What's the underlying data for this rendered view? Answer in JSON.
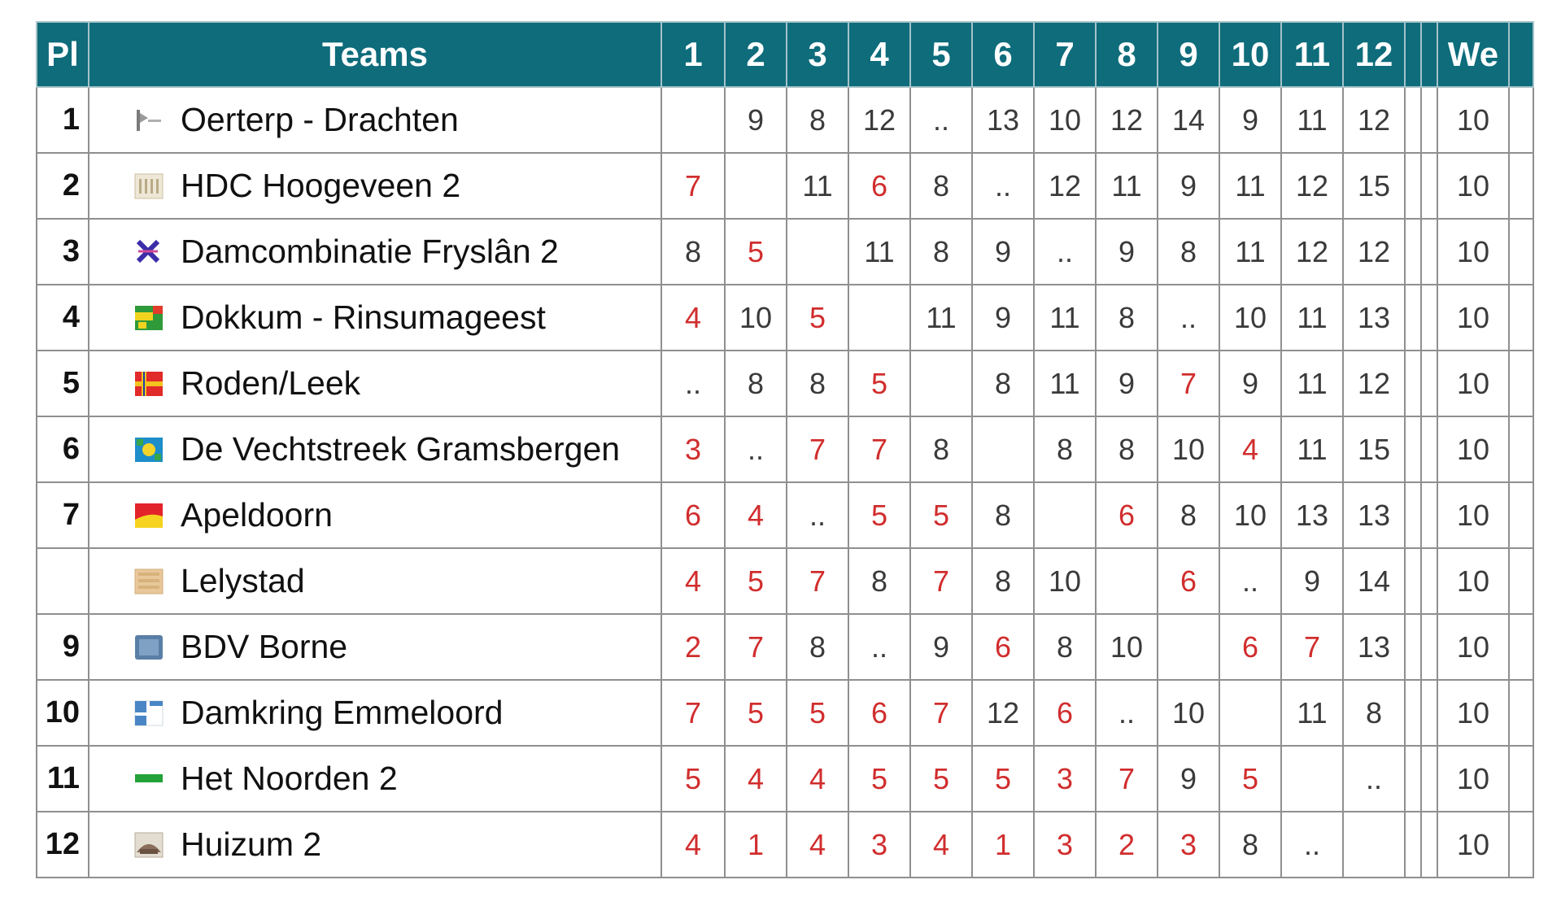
{
  "header": {
    "pl": "Pl",
    "teams": "Teams",
    "rounds": [
      "1",
      "2",
      "3",
      "4",
      "5",
      "6",
      "7",
      "8",
      "9",
      "10",
      "11",
      "12"
    ],
    "extra1": "",
    "extra2": "",
    "we": "We",
    "last": ""
  },
  "rows": [
    {
      "pl": "1",
      "team": "Oerterp - Drachten",
      "logo_icon": "oerterp-drachten-logo-icon",
      "scores": [
        {
          "v": "",
          "loss": false
        },
        {
          "v": "9",
          "loss": false
        },
        {
          "v": "8",
          "loss": false
        },
        {
          "v": "12",
          "loss": false
        },
        {
          "v": "..",
          "loss": false
        },
        {
          "v": "13",
          "loss": false
        },
        {
          "v": "10",
          "loss": false
        },
        {
          "v": "12",
          "loss": false
        },
        {
          "v": "14",
          "loss": false
        },
        {
          "v": "9",
          "loss": false
        },
        {
          "v": "11",
          "loss": false
        },
        {
          "v": "12",
          "loss": false
        }
      ],
      "we": "10"
    },
    {
      "pl": "2",
      "team": "HDC Hoogeveen 2",
      "logo_icon": "hdc-hoogeveen-logo-icon",
      "scores": [
        {
          "v": "7",
          "loss": true
        },
        {
          "v": "",
          "loss": false
        },
        {
          "v": "11",
          "loss": false
        },
        {
          "v": "6",
          "loss": true
        },
        {
          "v": "8",
          "loss": false
        },
        {
          "v": "..",
          "loss": false
        },
        {
          "v": "12",
          "loss": false
        },
        {
          "v": "11",
          "loss": false
        },
        {
          "v": "9",
          "loss": false
        },
        {
          "v": "11",
          "loss": false
        },
        {
          "v": "12",
          "loss": false
        },
        {
          "v": "15",
          "loss": false
        }
      ],
      "we": "10"
    },
    {
      "pl": "3",
      "team": "Damcombinatie Fryslân 2",
      "logo_icon": "damcombinatie-fryslan-logo-icon",
      "scores": [
        {
          "v": "8",
          "loss": false
        },
        {
          "v": "5",
          "loss": true
        },
        {
          "v": "",
          "loss": false
        },
        {
          "v": "11",
          "loss": false
        },
        {
          "v": "8",
          "loss": false
        },
        {
          "v": "9",
          "loss": false
        },
        {
          "v": "..",
          "loss": false
        },
        {
          "v": "9",
          "loss": false
        },
        {
          "v": "8",
          "loss": false
        },
        {
          "v": "11",
          "loss": false
        },
        {
          "v": "12",
          "loss": false
        },
        {
          "v": "12",
          "loss": false
        }
      ],
      "we": "10"
    },
    {
      "pl": "4",
      "team": "Dokkum - Rinsumageest",
      "logo_icon": "dokkum-rinsumageest-logo-icon",
      "scores": [
        {
          "v": "4",
          "loss": true
        },
        {
          "v": "10",
          "loss": false
        },
        {
          "v": "5",
          "loss": true
        },
        {
          "v": "",
          "loss": false
        },
        {
          "v": "11",
          "loss": false
        },
        {
          "v": "9",
          "loss": false
        },
        {
          "v": "11",
          "loss": false
        },
        {
          "v": "8",
          "loss": false
        },
        {
          "v": "..",
          "loss": false
        },
        {
          "v": "10",
          "loss": false
        },
        {
          "v": "11",
          "loss": false
        },
        {
          "v": "13",
          "loss": false
        }
      ],
      "we": "10"
    },
    {
      "pl": "5",
      "team": "Roden/Leek",
      "logo_icon": "roden-leek-logo-icon",
      "scores": [
        {
          "v": "..",
          "loss": false
        },
        {
          "v": "8",
          "loss": false
        },
        {
          "v": "8",
          "loss": false
        },
        {
          "v": "5",
          "loss": true
        },
        {
          "v": "",
          "loss": false
        },
        {
          "v": "8",
          "loss": false
        },
        {
          "v": "11",
          "loss": false
        },
        {
          "v": "9",
          "loss": false
        },
        {
          "v": "7",
          "loss": true
        },
        {
          "v": "9",
          "loss": false
        },
        {
          "v": "11",
          "loss": false
        },
        {
          "v": "12",
          "loss": false
        }
      ],
      "we": "10"
    },
    {
      "pl": "6",
      "team": "De Vechtstreek Gramsbergen",
      "logo_icon": "de-vechtstreek-gramsbergen-logo-icon",
      "scores": [
        {
          "v": "3",
          "loss": true
        },
        {
          "v": "..",
          "loss": false
        },
        {
          "v": "7",
          "loss": true
        },
        {
          "v": "7",
          "loss": true
        },
        {
          "v": "8",
          "loss": false
        },
        {
          "v": "",
          "loss": false
        },
        {
          "v": "8",
          "loss": false
        },
        {
          "v": "8",
          "loss": false
        },
        {
          "v": "10",
          "loss": false
        },
        {
          "v": "4",
          "loss": true
        },
        {
          "v": "11",
          "loss": false
        },
        {
          "v": "15",
          "loss": false
        }
      ],
      "we": "10"
    },
    {
      "pl": "7",
      "team": "Apeldoorn",
      "logo_icon": "apeldoorn-logo-icon",
      "scores": [
        {
          "v": "6",
          "loss": true
        },
        {
          "v": "4",
          "loss": true
        },
        {
          "v": "..",
          "loss": false
        },
        {
          "v": "5",
          "loss": true
        },
        {
          "v": "5",
          "loss": true
        },
        {
          "v": "8",
          "loss": false
        },
        {
          "v": "",
          "loss": false
        },
        {
          "v": "6",
          "loss": true
        },
        {
          "v": "8",
          "loss": false
        },
        {
          "v": "10",
          "loss": false
        },
        {
          "v": "13",
          "loss": false
        },
        {
          "v": "13",
          "loss": false
        }
      ],
      "we": "10"
    },
    {
      "pl": "",
      "team": "Lelystad",
      "logo_icon": "lelystad-logo-icon",
      "scores": [
        {
          "v": "4",
          "loss": true
        },
        {
          "v": "5",
          "loss": true
        },
        {
          "v": "7",
          "loss": true
        },
        {
          "v": "8",
          "loss": false
        },
        {
          "v": "7",
          "loss": true
        },
        {
          "v": "8",
          "loss": false
        },
        {
          "v": "10",
          "loss": false
        },
        {
          "v": "",
          "loss": false
        },
        {
          "v": "6",
          "loss": true
        },
        {
          "v": "..",
          "loss": false
        },
        {
          "v": "9",
          "loss": false
        },
        {
          "v": "14",
          "loss": false
        }
      ],
      "we": "10"
    },
    {
      "pl": "9",
      "team": "BDV Borne",
      "logo_icon": "bdv-borne-logo-icon",
      "scores": [
        {
          "v": "2",
          "loss": true
        },
        {
          "v": "7",
          "loss": true
        },
        {
          "v": "8",
          "loss": false
        },
        {
          "v": "..",
          "loss": false
        },
        {
          "v": "9",
          "loss": false
        },
        {
          "v": "6",
          "loss": true
        },
        {
          "v": "8",
          "loss": false
        },
        {
          "v": "10",
          "loss": false
        },
        {
          "v": "",
          "loss": false
        },
        {
          "v": "6",
          "loss": true
        },
        {
          "v": "7",
          "loss": true
        },
        {
          "v": "13",
          "loss": false
        }
      ],
      "we": "10"
    },
    {
      "pl": "10",
      "team": "Damkring Emmeloord",
      "logo_icon": "damkring-emmeloord-logo-icon",
      "scores": [
        {
          "v": "7",
          "loss": true
        },
        {
          "v": "5",
          "loss": true
        },
        {
          "v": "5",
          "loss": true
        },
        {
          "v": "6",
          "loss": true
        },
        {
          "v": "7",
          "loss": true
        },
        {
          "v": "12",
          "loss": false
        },
        {
          "v": "6",
          "loss": true
        },
        {
          "v": "..",
          "loss": false
        },
        {
          "v": "10",
          "loss": false
        },
        {
          "v": "",
          "loss": false
        },
        {
          "v": "11",
          "loss": false
        },
        {
          "v": "8",
          "loss": false
        }
      ],
      "we": "10"
    },
    {
      "pl": "11",
      "team": "Het Noorden 2",
      "logo_icon": "het-noorden-logo-icon",
      "scores": [
        {
          "v": "5",
          "loss": true
        },
        {
          "v": "4",
          "loss": true
        },
        {
          "v": "4",
          "loss": true
        },
        {
          "v": "5",
          "loss": true
        },
        {
          "v": "5",
          "loss": true
        },
        {
          "v": "5",
          "loss": true
        },
        {
          "v": "3",
          "loss": true
        },
        {
          "v": "7",
          "loss": true
        },
        {
          "v": "9",
          "loss": false
        },
        {
          "v": "5",
          "loss": true
        },
        {
          "v": "",
          "loss": false
        },
        {
          "v": "..",
          "loss": false
        }
      ],
      "we": "10"
    },
    {
      "pl": "12",
      "team": "Huizum 2",
      "logo_icon": "huizum-logo-icon",
      "scores": [
        {
          "v": "4",
          "loss": true
        },
        {
          "v": "1",
          "loss": true
        },
        {
          "v": "4",
          "loss": true
        },
        {
          "v": "3",
          "loss": true
        },
        {
          "v": "4",
          "loss": true
        },
        {
          "v": "1",
          "loss": true
        },
        {
          "v": "3",
          "loss": true
        },
        {
          "v": "2",
          "loss": true
        },
        {
          "v": "3",
          "loss": true
        },
        {
          "v": "8",
          "loss": false
        },
        {
          "v": "..",
          "loss": false
        },
        {
          "v": "",
          "loss": false
        }
      ],
      "we": "10"
    }
  ],
  "colors": {
    "header_bg": "#0e6c7b",
    "header_text": "#ffffff",
    "loss_text": "#d12d2d",
    "normal_text": "#3a3a3a",
    "grid": "#8f8f8f"
  }
}
